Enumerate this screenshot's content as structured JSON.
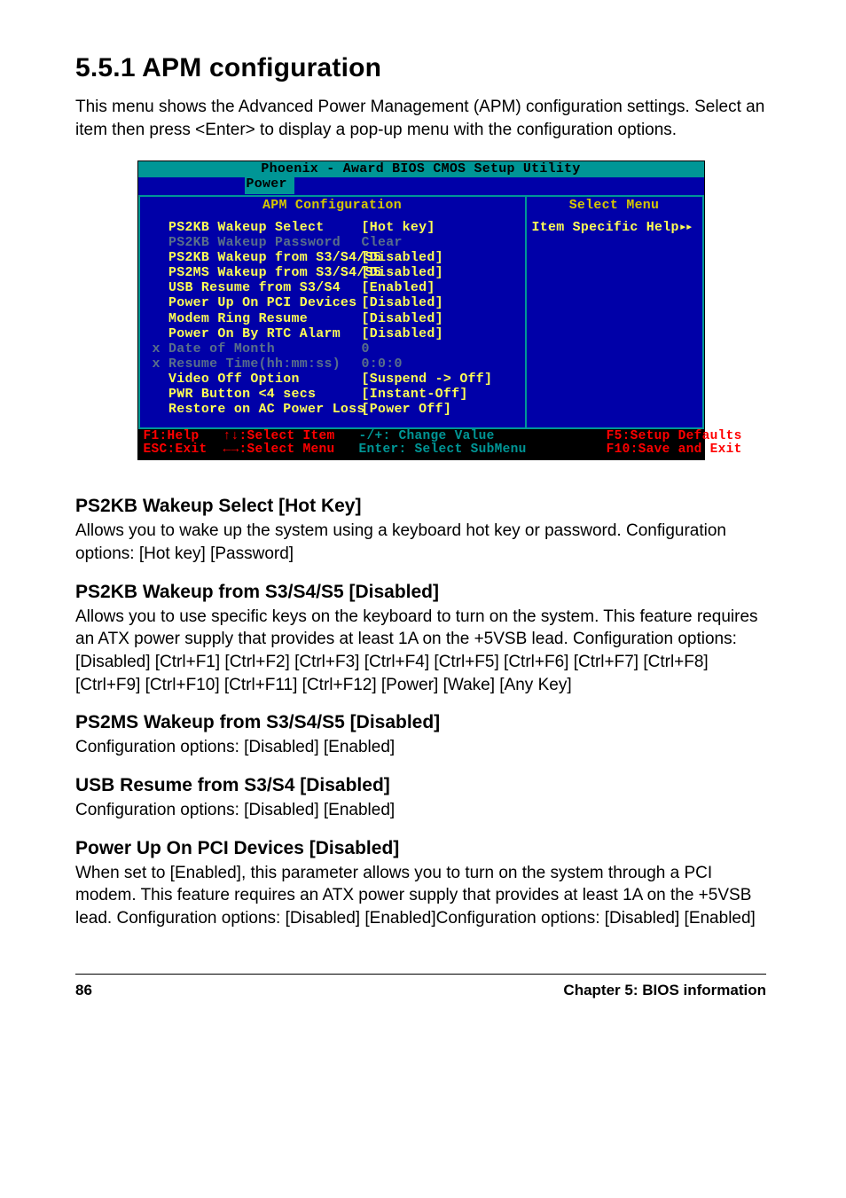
{
  "heading": "5.5.1  APM configuration",
  "intro": "This menu shows the Advanced Power Management (APM) configuration settings. Select an item then press <Enter> to display a pop-up menu with the configuration options.",
  "bios": {
    "title": "Phoenix - Award BIOS CMOS Setup Utility",
    "tab": " Power ",
    "left_header": "APM Configuration",
    "right_header": "Select Menu",
    "help_text": "Item Specific Help",
    "rows": [
      {
        "label": "  PS2KB Wakeup Select",
        "value": "[Hot key]",
        "dim": false
      },
      {
        "label": "  PS2KB Wakeup Password",
        "value": "Clear",
        "dim": true
      },
      {
        "label": "  PS2KB Wakeup from S3/S4/S5",
        "value": "[Disabled]",
        "dim": false
      },
      {
        "label": "  PS2MS Wakeup from S3/S4/S5",
        "value": "[Disabled]",
        "dim": false
      },
      {
        "label": "  USB Resume from S3/S4",
        "value": "[Enabled]",
        "dim": false
      },
      {
        "label": "  Power Up On PCI Devices",
        "value": "[Disabled]",
        "dim": false
      },
      {
        "label": "  Modem Ring Resume",
        "value": "[Disabled]",
        "dim": false
      },
      {
        "label": "  Power On By RTC Alarm",
        "value": "[Disabled]",
        "dim": false
      },
      {
        "label": "x Date of Month",
        "value": "0",
        "dim": true
      },
      {
        "label": "x Resume Time(hh:mm:ss)",
        "value": "0:0:0",
        "dim": true
      },
      {
        "label": "  Video Off Option",
        "value": "[Suspend -> Off]",
        "dim": false
      },
      {
        "label": "  PWR Button <4 secs",
        "value": "[Instant-Off]",
        "dim": false
      },
      {
        "label": "  Restore on AC Power Loss",
        "value": "[Power Off]",
        "dim": false
      }
    ],
    "footer_line1_a": "F1:Help   ↑↓:Select Item   ",
    "footer_line1_b": "-/+: Change Value",
    "footer_line1_c": "              F5:Setup Defaults",
    "footer_line2_a": "ESC:Exit  ←→:Select Menu   ",
    "footer_line2_b": "Enter: Select SubMenu",
    "footer_line2_c": "          F10:Save and Exit"
  },
  "sections": [
    {
      "title": "PS2KB Wakeup Select [Hot Key]",
      "body": "Allows you to wake up the system using a keyboard hot key or password. Configuration options: [Hot key] [Password]"
    },
    {
      "title": "PS2KB Wakeup from S3/S4/S5 [Disabled]",
      "body": "Allows you to use specific keys on the keyboard to turn on the system. This feature requires an ATX power supply that provides at least 1A on the +5VSB lead. Configuration options: [Disabled] [Ctrl+F1]  [Ctrl+F2] [Ctrl+F3]  [Ctrl+F4]  [Ctrl+F5] [Ctrl+F6] [Ctrl+F7]  [Ctrl+F8] [Ctrl+F9] [Ctrl+F10]  [Ctrl+F11]  [Ctrl+F12] [Power] [Wake] [Any Key]"
    },
    {
      "title": "PS2MS Wakeup from S3/S4/S5 [Disabled]",
      "body": "Configuration options: [Disabled] [Enabled]"
    },
    {
      "title": "USB Resume from S3/S4 [Disabled]",
      "body": "Configuration options: [Disabled] [Enabled]"
    },
    {
      "title": "Power Up On PCI Devices [Disabled]",
      "body": "When set to [Enabled], this parameter allows you to turn on the system through a PCI modem. This feature requires an ATX power supply that provides at least 1A on the +5VSB lead. Configuration options: [Disabled] [Enabled]Configuration options: [Disabled] [Enabled]"
    }
  ],
  "page_number": "86",
  "chapter": "Chapter 5:  BIOS information",
  "help_arrows": "▸▸"
}
